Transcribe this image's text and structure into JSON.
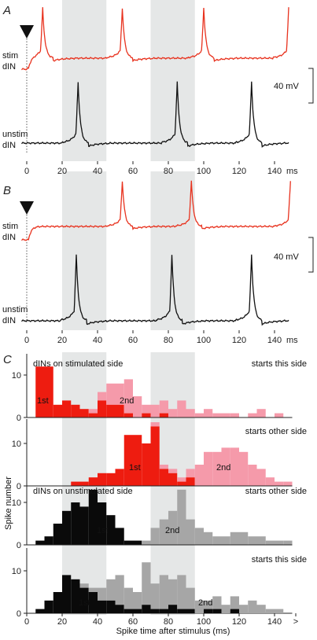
{
  "figure": {
    "panels": [
      {
        "letter": "A"
      },
      {
        "letter": "B"
      },
      {
        "letter": "C"
      }
    ],
    "trace_labels": {
      "stim_line1": "stim",
      "stim_line2": "dIN",
      "unstim_line1": "unstim",
      "unstim_line2": "dIN"
    },
    "scalebar_label": "40 mV",
    "colors": {
      "stim": "#e8321e",
      "unstim": "#111111",
      "first_spike_stim": "#ee1c10",
      "second_spike_stim": "#f59aaa",
      "first_spike_unstim": "#0a0a0a",
      "second_spike_unstim": "#a6a6a6",
      "window_shading": "#e5e7e7"
    }
  },
  "chart_data": [
    {
      "panel": "A",
      "type": "line",
      "x_unit": "ms",
      "xticks": [
        "0",
        "20",
        "40",
        "60",
        "80",
        "100",
        "120",
        "140"
      ],
      "xlim": [
        -3,
        148
      ],
      "stimulus_time": 0,
      "shaded_windows_ms": [
        [
          20,
          45
        ],
        [
          70,
          95
        ]
      ],
      "series": [
        {
          "name": "stim dIN",
          "spike_times_ms": [
            9,
            54,
            100,
            148
          ]
        },
        {
          "name": "unstim dIN",
          "spike_times_ms": [
            29,
            85,
            127
          ]
        }
      ],
      "scalebar_mV": 40
    },
    {
      "panel": "B",
      "type": "line",
      "x_unit": "ms",
      "xticks": [
        "0",
        "20",
        "40",
        "60",
        "80",
        "100",
        "120",
        "140"
      ],
      "xlim": [
        -3,
        148
      ],
      "stimulus_time": 0,
      "shaded_windows_ms": [
        [
          20,
          45
        ],
        [
          70,
          95
        ]
      ],
      "series": [
        {
          "name": "stim dIN",
          "spike_times_ms": [
            54,
            93,
            149
          ]
        },
        {
          "name": "unstim dIN",
          "spike_times_ms": [
            28,
            82,
            127
          ]
        }
      ],
      "scalebar_mV": 40
    },
    {
      "panel": "C",
      "type": "bar",
      "stacked": true,
      "ylabel": "Spike number",
      "xlabel": "Spike time after stimulus (ms)",
      "xticks": [
        "0",
        "20",
        "40",
        "60",
        "80",
        "100",
        "120",
        "140",
        ">"
      ],
      "xlim": [
        -3,
        152
      ],
      "ylim": [
        0,
        15
      ],
      "yticks": [
        0,
        10
      ],
      "bin_width_ms": 5,
      "bin_starts_ms": [
        5,
        10,
        15,
        20,
        25,
        30,
        35,
        40,
        45,
        50,
        55,
        60,
        65,
        70,
        75,
        80,
        85,
        90,
        95,
        100,
        105,
        110,
        115,
        120,
        125,
        130,
        135,
        140,
        145
      ],
      "shaded_windows_ms": [
        [
          20,
          45
        ],
        [
          70,
          95
        ]
      ],
      "subpanels": [
        {
          "group_label": "dINs on stimulated side",
          "condition": "starts this side",
          "first_label": "1st",
          "second_label": "2nd",
          "first": [
            12,
            12,
            3,
            4,
            3,
            2,
            1,
            4,
            3,
            3,
            1,
            0,
            1,
            0,
            1,
            0,
            0,
            0,
            0,
            0,
            0,
            0,
            0,
            0,
            0,
            0,
            0,
            0,
            0
          ],
          "second": [
            0,
            0,
            0,
            0,
            0,
            0,
            1,
            2,
            5,
            5,
            8,
            5,
            2,
            3,
            3,
            2,
            4,
            2,
            1,
            2,
            1,
            1,
            1,
            0,
            1,
            2,
            0,
            1,
            0
          ]
        },
        {
          "group_label": "",
          "condition": "starts other side",
          "first_label": "1st",
          "second_label": "2nd",
          "first": [
            0,
            0,
            0,
            0,
            1,
            1,
            2,
            3,
            3,
            4,
            12,
            12,
            10,
            14,
            4,
            3,
            1,
            2,
            0,
            0,
            0,
            0,
            0,
            0,
            0,
            0,
            0,
            0,
            0
          ],
          "second": [
            0,
            0,
            0,
            0,
            0,
            0,
            0,
            0,
            0,
            0,
            0,
            0,
            0,
            1,
            1,
            1,
            1,
            2,
            5,
            8,
            8,
            9,
            9,
            8,
            5,
            4,
            2,
            1,
            1
          ]
        },
        {
          "group_label": "dINs on unstimulated side",
          "condition": "starts other side",
          "first_label": "1st",
          "second_label": "2nd",
          "first": [
            1,
            2,
            5,
            8,
            10,
            9,
            13,
            10,
            7,
            4,
            1,
            1,
            0,
            0,
            0,
            0,
            0,
            0,
            0,
            0,
            0,
            0,
            0,
            0,
            0,
            0,
            0,
            0,
            0
          ],
          "second": [
            0,
            0,
            0,
            0,
            0,
            0,
            0,
            0,
            0,
            0,
            0,
            0,
            1,
            4,
            6,
            8,
            13,
            6,
            4,
            3,
            2,
            2,
            3,
            3,
            2,
            2,
            1,
            1,
            1
          ]
        },
        {
          "group_label": "",
          "condition": "starts this side",
          "first_label": "1st",
          "second_label": "2nd",
          "first": [
            1,
            3,
            5,
            9,
            8,
            6,
            5,
            3,
            3,
            2,
            1,
            1,
            2,
            1,
            1,
            2,
            1,
            1,
            0,
            1,
            1,
            0,
            1,
            0,
            0,
            0,
            0,
            0,
            0
          ],
          "second": [
            0,
            0,
            0,
            0,
            0,
            1,
            1,
            3,
            5,
            7,
            5,
            4,
            10,
            6,
            8,
            6,
            8,
            5,
            3,
            2,
            3,
            2,
            3,
            2,
            3,
            2,
            1,
            1,
            0
          ]
        }
      ]
    }
  ]
}
